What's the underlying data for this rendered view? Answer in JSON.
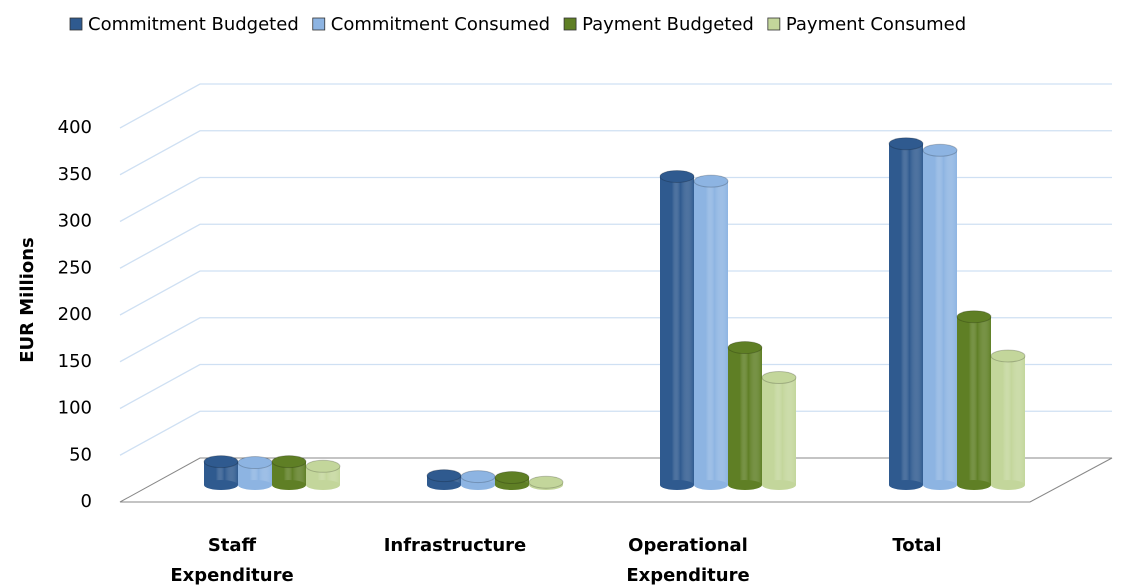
{
  "chart_data": {
    "type": "bar3d",
    "y_label": "EUR Millions",
    "categories": [
      "Staff Expenditure",
      "Infrastructure",
      "Operational Expenditure",
      "Total"
    ],
    "series": [
      {
        "name": "Commitment Budgeted",
        "color": "#2f5a8f",
        "values": [
          25,
          10,
          330,
          365
        ]
      },
      {
        "name": "Commitment Consumed",
        "color": "#8db4e2",
        "values": [
          24,
          9,
          325,
          358
        ]
      },
      {
        "name": "Payment Budgeted",
        "color": "#5f7f25",
        "values": [
          25,
          8,
          147,
          180
        ]
      },
      {
        "name": "Payment Consumed",
        "color": "#c3d69b",
        "values": [
          20,
          3,
          115,
          138
        ]
      }
    ],
    "ylim": [
      0,
      400
    ],
    "yticks": [
      0,
      50,
      100,
      150,
      200,
      250,
      300,
      350,
      400
    ],
    "grid": true,
    "legend": "top"
  }
}
